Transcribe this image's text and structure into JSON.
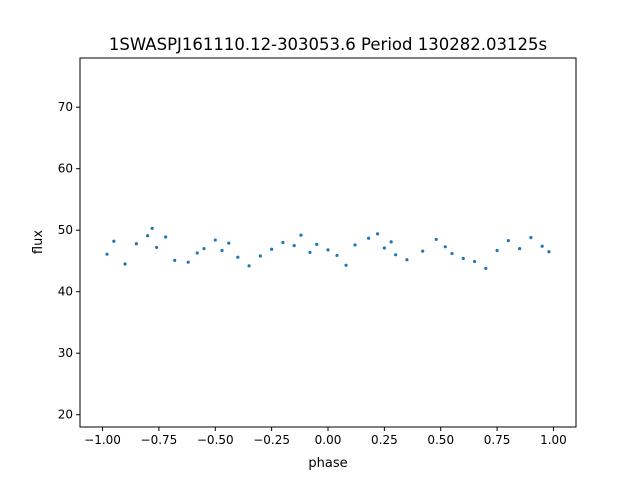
{
  "chart_data": {
    "type": "scatter",
    "title": "1SWASPJ161110.12-303053.6 Period 130282.03125s",
    "xlabel": "phase",
    "ylabel": "flux",
    "xlim": [
      -1.1,
      1.1
    ],
    "ylim": [
      18,
      78
    ],
    "xticks": [
      {
        "value": -1.0,
        "label": "−1.00"
      },
      {
        "value": -0.75,
        "label": "−0.75"
      },
      {
        "value": -0.5,
        "label": "−0.50"
      },
      {
        "value": -0.25,
        "label": "−0.25"
      },
      {
        "value": 0.0,
        "label": "0.00"
      },
      {
        "value": 0.25,
        "label": "0.25"
      },
      {
        "value": 0.5,
        "label": "0.50"
      },
      {
        "value": 0.75,
        "label": "0.75"
      },
      {
        "value": 1.0,
        "label": "1.00"
      }
    ],
    "yticks": [
      {
        "value": 20,
        "label": "20"
      },
      {
        "value": 30,
        "label": "30"
      },
      {
        "value": 40,
        "label": "40"
      },
      {
        "value": 50,
        "label": "50"
      },
      {
        "value": 60,
        "label": "60"
      },
      {
        "value": 70,
        "label": "70"
      }
    ],
    "grid": false,
    "legend": "none",
    "marker_color": "#1f77b4",
    "series": [
      {
        "x": [
          -0.98,
          -0.95,
          -0.9,
          -0.85,
          -0.8,
          -0.78,
          -0.76,
          -0.72,
          -0.68,
          -0.62,
          -0.58,
          -0.55,
          -0.5,
          -0.47,
          -0.44,
          -0.4,
          -0.35,
          -0.3,
          -0.25,
          -0.2,
          -0.15,
          -0.12,
          -0.08,
          -0.05,
          0.0,
          0.04,
          0.08,
          0.12,
          0.18,
          0.22,
          0.25,
          0.28,
          0.3,
          0.35,
          0.42,
          0.48,
          0.52,
          0.55,
          0.6,
          0.65,
          0.7,
          0.75,
          0.8,
          0.85,
          0.9,
          0.95,
          0.98
        ],
        "y": [
          46.1,
          48.2,
          44.5,
          47.8,
          49.1,
          50.3,
          47.2,
          48.9,
          45.1,
          44.8,
          46.3,
          47.0,
          48.4,
          46.7,
          47.9,
          45.6,
          44.2,
          45.8,
          46.9,
          48.0,
          47.5,
          49.2,
          46.4,
          47.7,
          46.8,
          45.9,
          44.3,
          47.6,
          48.7,
          49.4,
          47.1,
          48.1,
          46.0,
          45.2,
          46.6,
          48.5,
          47.3,
          46.2,
          45.4,
          44.9,
          43.8,
          46.7,
          48.3,
          47.0,
          48.8,
          47.4,
          46.5
        ]
      }
    ]
  }
}
